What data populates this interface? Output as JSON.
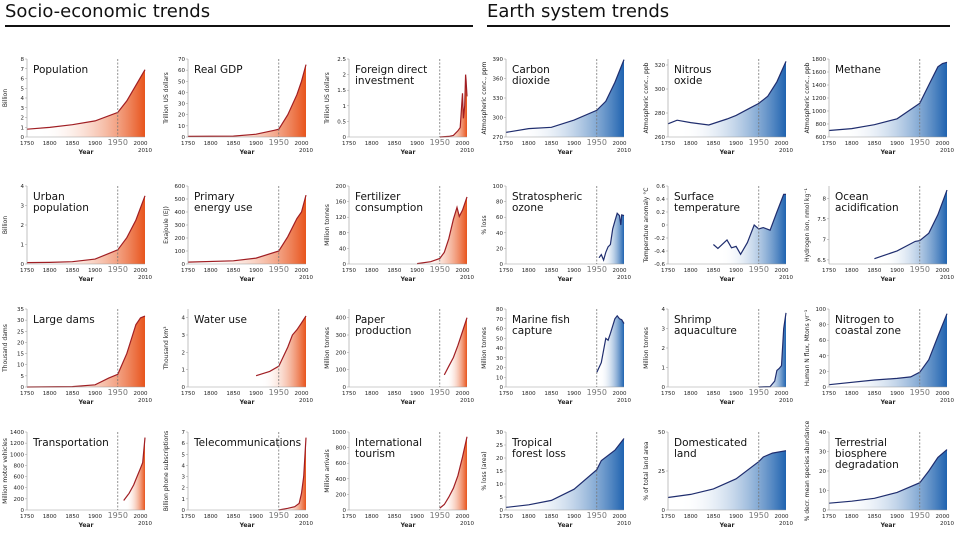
{
  "headers": {
    "left": "Socio-economic trends",
    "right": "Earth system trends"
  },
  "colors": {
    "socio_line": "#a01e23",
    "socio_fill": "#e8541c",
    "earth_line": "#1f2d6e",
    "earth_fill": "#1f63b0",
    "marker_1950": "#777777"
  },
  "chart_data": [
    {
      "type": "area",
      "title": [
        "Population"
      ],
      "ylabel": "Billion",
      "xlabel": "Year",
      "ylim": [
        0,
        8
      ],
      "yticks": [
        0,
        1,
        2,
        3,
        4,
        5,
        6,
        7,
        8
      ],
      "group": "socio",
      "points": [
        [
          1750,
          0.8
        ],
        [
          1800,
          0.98
        ],
        [
          1850,
          1.26
        ],
        [
          1900,
          1.65
        ],
        [
          1950,
          2.52
        ],
        [
          1970,
          3.7
        ],
        [
          1990,
          5.3
        ],
        [
          2010,
          6.9
        ]
      ]
    },
    {
      "type": "area",
      "title": [
        "Real GDP"
      ],
      "ylabel": "Trillion US dollars",
      "xlabel": "Year",
      "ylim": [
        0,
        70
      ],
      "yticks": [
        0,
        10,
        20,
        30,
        40,
        50,
        60,
        70
      ],
      "group": "socio",
      "points": [
        [
          1750,
          0.5
        ],
        [
          1850,
          0.8
        ],
        [
          1900,
          2.5
        ],
        [
          1940,
          6
        ],
        [
          1950,
          7
        ],
        [
          1970,
          20
        ],
        [
          1990,
          38
        ],
        [
          2000,
          50
        ],
        [
          2010,
          65
        ]
      ]
    },
    {
      "type": "area",
      "title": [
        "Foreign direct",
        "investment"
      ],
      "ylabel": "Trillion US dollars",
      "xlabel": "Year",
      "ylim": [
        0,
        2.5
      ],
      "yticks": [
        0,
        0.5,
        1,
        1.5,
        2,
        2.5
      ],
      "group": "socio",
      "points": [
        [
          1950,
          0
        ],
        [
          1970,
          0.02
        ],
        [
          1980,
          0.05
        ],
        [
          1990,
          0.2
        ],
        [
          1995,
          0.3
        ],
        [
          2000,
          1.4
        ],
        [
          2002,
          0.6
        ],
        [
          2005,
          1.0
        ],
        [
          2007,
          2.0
        ],
        [
          2008,
          1.8
        ],
        [
          2010,
          1.3
        ]
      ]
    },
    {
      "type": "area",
      "title": [
        "Urban",
        "population"
      ],
      "ylabel": "Billion",
      "xlabel": "Year",
      "ylim": [
        0,
        4
      ],
      "yticks": [
        0,
        1,
        2,
        3,
        4
      ],
      "group": "socio",
      "points": [
        [
          1750,
          0.07
        ],
        [
          1800,
          0.08
        ],
        [
          1850,
          0.12
        ],
        [
          1900,
          0.25
        ],
        [
          1950,
          0.73
        ],
        [
          1970,
          1.35
        ],
        [
          1990,
          2.25
        ],
        [
          2010,
          3.5
        ]
      ]
    },
    {
      "type": "area",
      "title": [
        "Primary",
        "energy use"
      ],
      "ylabel": "Exajoule (EJ)",
      "xlabel": "Year",
      "ylim": [
        0,
        600
      ],
      "yticks": [
        0,
        100,
        200,
        300,
        400,
        500,
        600
      ],
      "group": "socio",
      "points": [
        [
          1750,
          15
        ],
        [
          1850,
          25
        ],
        [
          1900,
          45
        ],
        [
          1950,
          100
        ],
        [
          1970,
          210
        ],
        [
          1990,
          350
        ],
        [
          2000,
          400
        ],
        [
          2010,
          530
        ]
      ]
    },
    {
      "type": "area",
      "title": [
        "Fertilizer",
        "consumption"
      ],
      "ylabel": "Million tonnes",
      "xlabel": "Year",
      "ylim": [
        0,
        200
      ],
      "yticks": [
        0,
        40,
        80,
        120,
        160,
        200
      ],
      "group": "socio",
      "points": [
        [
          1900,
          1
        ],
        [
          1930,
          6
        ],
        [
          1950,
          14
        ],
        [
          1960,
          30
        ],
        [
          1970,
          65
        ],
        [
          1980,
          115
        ],
        [
          1988,
          145
        ],
        [
          1993,
          122
        ],
        [
          2000,
          138
        ],
        [
          2010,
          172
        ]
      ]
    },
    {
      "type": "area",
      "title": [
        "Large dams"
      ],
      "ylabel": "Thousand dams",
      "xlabel": "Year",
      "ylim": [
        0,
        35
      ],
      "yticks": [
        0,
        5,
        10,
        15,
        20,
        25,
        30,
        35
      ],
      "group": "socio",
      "points": [
        [
          1750,
          0
        ],
        [
          1850,
          0.2
        ],
        [
          1900,
          1
        ],
        [
          1930,
          4
        ],
        [
          1950,
          5.7
        ],
        [
          1970,
          15
        ],
        [
          1990,
          28
        ],
        [
          2000,
          31
        ],
        [
          2010,
          31.8
        ]
      ]
    },
    {
      "type": "area",
      "title": [
        "Water use"
      ],
      "ylabel": "Thousand km³",
      "xlabel": "Year",
      "ylim": [
        0,
        4.5
      ],
      "yticks": [
        0,
        1,
        2,
        3,
        4
      ],
      "group": "socio",
      "points": [
        [
          1900,
          0.65
        ],
        [
          1930,
          0.9
        ],
        [
          1950,
          1.2
        ],
        [
          1970,
          2.3
        ],
        [
          1980,
          3.0
        ],
        [
          1990,
          3.3
        ],
        [
          2000,
          3.7
        ],
        [
          2010,
          4.1
        ]
      ]
    },
    {
      "type": "area",
      "title": [
        "Paper",
        "production"
      ],
      "ylabel": "Million tonnes",
      "xlabel": "Year",
      "ylim": [
        0,
        450
      ],
      "yticks": [
        0,
        100,
        200,
        300,
        400
      ],
      "group": "socio",
      "points": [
        [
          1960,
          70
        ],
        [
          1970,
          120
        ],
        [
          1980,
          170
        ],
        [
          1990,
          240
        ],
        [
          2000,
          320
        ],
        [
          2010,
          400
        ]
      ]
    },
    {
      "type": "area",
      "title": [
        "Transportation"
      ],
      "ylabel": "Million motor vehicles",
      "xlabel": "Year",
      "ylim": [
        0,
        1400
      ],
      "yticks": [
        0,
        200,
        400,
        600,
        800,
        1000,
        1200,
        1400
      ],
      "group": "socio",
      "points": [
        [
          1963,
          170
        ],
        [
          1975,
          300
        ],
        [
          1985,
          450
        ],
        [
          1990,
          550
        ],
        [
          2000,
          750
        ],
        [
          2005,
          850
        ],
        [
          2010,
          1300
        ]
      ]
    },
    {
      "type": "area",
      "title": [
        "Telecommunications"
      ],
      "ylabel": "Billion phone subscriptions",
      "xlabel": "Year",
      "ylim": [
        0,
        7
      ],
      "yticks": [
        0,
        1,
        2,
        3,
        4,
        5,
        6,
        7
      ],
      "group": "socio",
      "points": [
        [
          1950,
          0
        ],
        [
          1970,
          0.15
        ],
        [
          1985,
          0.3
        ],
        [
          1995,
          0.6
        ],
        [
          2000,
          1.5
        ],
        [
          2005,
          3.0
        ],
        [
          2010,
          6.5
        ]
      ]
    },
    {
      "type": "area",
      "title": [
        "International",
        "tourism"
      ],
      "ylabel": "Million arrivals",
      "xlabel": "Year",
      "ylim": [
        0,
        1000
      ],
      "yticks": [
        0,
        200,
        400,
        600,
        800,
        1000
      ],
      "group": "socio",
      "points": [
        [
          1950,
          25
        ],
        [
          1960,
          70
        ],
        [
          1970,
          165
        ],
        [
          1980,
          280
        ],
        [
          1990,
          440
        ],
        [
          2000,
          680
        ],
        [
          2010,
          940
        ]
      ]
    },
    {
      "type": "area",
      "title": [
        "Carbon",
        "dioxide"
      ],
      "ylabel": "Atmospheric conc., ppm",
      "xlabel": "Year",
      "ylim": [
        270,
        390
      ],
      "yticks": [
        270,
        300,
        330,
        360,
        390
      ],
      "group": "earth",
      "points": [
        [
          1750,
          277
        ],
        [
          1800,
          283
        ],
        [
          1850,
          285
        ],
        [
          1900,
          296
        ],
        [
          1950,
          311
        ],
        [
          1970,
          325
        ],
        [
          1990,
          354
        ],
        [
          2010,
          389
        ]
      ]
    },
    {
      "type": "area",
      "title": [
        "Nitrous",
        "oxide"
      ],
      "ylabel": "Atmospheric conc., ppb",
      "xlabel": "Year",
      "ylim": [
        260,
        325
      ],
      "yticks": [
        260,
        280,
        300,
        320
      ],
      "group": "earth",
      "points": [
        [
          1750,
          271
        ],
        [
          1770,
          274
        ],
        [
          1800,
          272
        ],
        [
          1840,
          270
        ],
        [
          1880,
          275
        ],
        [
          1900,
          278
        ],
        [
          1930,
          284
        ],
        [
          1950,
          288
        ],
        [
          1970,
          294
        ],
        [
          1990,
          306
        ],
        [
          2010,
          323
        ]
      ]
    },
    {
      "type": "area",
      "title": [
        "Methane"
      ],
      "ylabel": "Atmospheric conc., ppb",
      "xlabel": "Year",
      "ylim": [
        600,
        1800
      ],
      "yticks": [
        600,
        800,
        1000,
        1200,
        1400,
        1600,
        1800
      ],
      "group": "earth",
      "points": [
        [
          1750,
          700
        ],
        [
          1800,
          730
        ],
        [
          1850,
          790
        ],
        [
          1900,
          880
        ],
        [
          1950,
          1120
        ],
        [
          1970,
          1400
        ],
        [
          1990,
          1680
        ],
        [
          2000,
          1730
        ],
        [
          2010,
          1750
        ]
      ]
    },
    {
      "type": "area",
      "title": [
        "Stratospheric",
        "ozone"
      ],
      "ylabel": "% loss",
      "xlabel": "Year",
      "ylim": [
        0,
        100
      ],
      "yticks": [
        0,
        20,
        40,
        60,
        80,
        100
      ],
      "group": "earth",
      "points": [
        [
          1955,
          8
        ],
        [
          1960,
          12
        ],
        [
          1965,
          5
        ],
        [
          1970,
          15
        ],
        [
          1975,
          22
        ],
        [
          1980,
          25
        ],
        [
          1985,
          45
        ],
        [
          1990,
          55
        ],
        [
          1995,
          65
        ],
        [
          2000,
          62
        ],
        [
          2003,
          50
        ],
        [
          2005,
          63
        ],
        [
          2010,
          62
        ]
      ]
    },
    {
      "type": "area",
      "title": [
        "Surface",
        "temperature"
      ],
      "ylabel": "Temperature anomaly °C",
      "xlabel": "Year",
      "ylim": [
        -0.6,
        0.6
      ],
      "yticks": [
        -0.6,
        -0.4,
        -0.2,
        0,
        0.2,
        0.4,
        0.6
      ],
      "group": "earth",
      "points": [
        [
          1850,
          -0.3
        ],
        [
          1860,
          -0.36
        ],
        [
          1880,
          -0.23
        ],
        [
          1890,
          -0.35
        ],
        [
          1900,
          -0.33
        ],
        [
          1910,
          -0.45
        ],
        [
          1925,
          -0.27
        ],
        [
          1940,
          0
        ],
        [
          1950,
          -0.06
        ],
        [
          1960,
          -0.04
        ],
        [
          1975,
          -0.08
        ],
        [
          1990,
          0.2
        ],
        [
          2005,
          0.47
        ],
        [
          2010,
          0.47
        ]
      ]
    },
    {
      "type": "area",
      "title": [
        "Ocean",
        "acidification"
      ],
      "ylabel": "Hydrogen ion, nmol kg⁻¹",
      "xlabel": "Year",
      "ylim": [
        6.4,
        8.3
      ],
      "yticks": [
        6.5,
        7.0,
        7.5,
        8.0
      ],
      "group": "earth",
      "points": [
        [
          1850,
          6.53
        ],
        [
          1900,
          6.72
        ],
        [
          1940,
          6.95
        ],
        [
          1950,
          6.97
        ],
        [
          1970,
          7.15
        ],
        [
          1990,
          7.6
        ],
        [
          2010,
          8.2
        ]
      ]
    },
    {
      "type": "area",
      "title": [
        "Marine fish",
        "capture"
      ],
      "ylabel": "Million tonnes",
      "xlabel": "Year",
      "ylim": [
        0,
        80
      ],
      "yticks": [
        0,
        10,
        20,
        30,
        40,
        50,
        60,
        70,
        80
      ],
      "group": "earth",
      "points": [
        [
          1950,
          15
        ],
        [
          1960,
          25
        ],
        [
          1970,
          50
        ],
        [
          1975,
          48
        ],
        [
          1980,
          55
        ],
        [
          1990,
          70
        ],
        [
          1995,
          73
        ],
        [
          2000,
          70
        ],
        [
          2005,
          69
        ],
        [
          2010,
          65
        ]
      ]
    },
    {
      "type": "area",
      "title": [
        "Shrimp",
        "aquaculture"
      ],
      "ylabel": "Million tonnes",
      "xlabel": "Year",
      "ylim": [
        0,
        4
      ],
      "yticks": [
        0,
        1,
        2,
        3,
        4
      ],
      "group": "earth",
      "points": [
        [
          1950,
          0
        ],
        [
          1975,
          0.02
        ],
        [
          1985,
          0.3
        ],
        [
          1990,
          0.85
        ],
        [
          1995,
          0.95
        ],
        [
          2000,
          1.1
        ],
        [
          2005,
          3.0
        ],
        [
          2010,
          3.8
        ]
      ]
    },
    {
      "type": "area",
      "title": [
        "Nitrogen to",
        "coastal zone"
      ],
      "ylabel": "Human N flux, Mtons yr⁻¹",
      "xlabel": "Year",
      "ylim": [
        0,
        100
      ],
      "yticks": [
        0,
        20,
        40,
        60,
        80,
        100
      ],
      "group": "earth",
      "points": [
        [
          1750,
          3
        ],
        [
          1850,
          9
        ],
        [
          1900,
          11
        ],
        [
          1930,
          13
        ],
        [
          1950,
          19
        ],
        [
          1970,
          35
        ],
        [
          1990,
          65
        ],
        [
          2010,
          94
        ]
      ]
    },
    {
      "type": "area",
      "title": [
        "Tropical",
        "forest loss"
      ],
      "ylabel": "% loss (area)",
      "xlabel": "Year",
      "ylim": [
        0,
        30
      ],
      "yticks": [
        0,
        5,
        10,
        15,
        20,
        25,
        30
      ],
      "group": "earth",
      "points": [
        [
          1750,
          1
        ],
        [
          1800,
          2
        ],
        [
          1850,
          3.7
        ],
        [
          1900,
          8
        ],
        [
          1950,
          15.5
        ],
        [
          1960,
          19
        ],
        [
          1990,
          23
        ],
        [
          2010,
          27.5
        ]
      ]
    },
    {
      "type": "area",
      "title": [
        "Domesticated",
        "land"
      ],
      "ylabel": "% of total land area",
      "xlabel": "Year",
      "ylim": [
        0,
        50
      ],
      "yticks": [
        0,
        25,
        50
      ],
      "group": "earth",
      "points": [
        [
          1750,
          8
        ],
        [
          1800,
          10
        ],
        [
          1850,
          13.5
        ],
        [
          1900,
          20
        ],
        [
          1950,
          31
        ],
        [
          1960,
          34
        ],
        [
          1980,
          36.5
        ],
        [
          2010,
          38
        ]
      ]
    },
    {
      "type": "area",
      "title": [
        "Terrestrial",
        "biosphere",
        "degradation"
      ],
      "ylabel": "% decr. mean species abundance",
      "xlabel": "Year",
      "ylim": [
        0,
        40
      ],
      "yticks": [
        0,
        10,
        20,
        30,
        40
      ],
      "group": "earth",
      "points": [
        [
          1750,
          3.5
        ],
        [
          1800,
          4.5
        ],
        [
          1850,
          6
        ],
        [
          1900,
          9
        ],
        [
          1950,
          14
        ],
        [
          1970,
          20
        ],
        [
          1990,
          27
        ],
        [
          2010,
          31
        ]
      ]
    }
  ],
  "xaxis": {
    "ticks": [
      1750,
      1800,
      1850,
      1900,
      1950,
      2000
    ],
    "end_label": "2010",
    "xlim": [
      1750,
      2010
    ],
    "marker_year": 1950
  }
}
